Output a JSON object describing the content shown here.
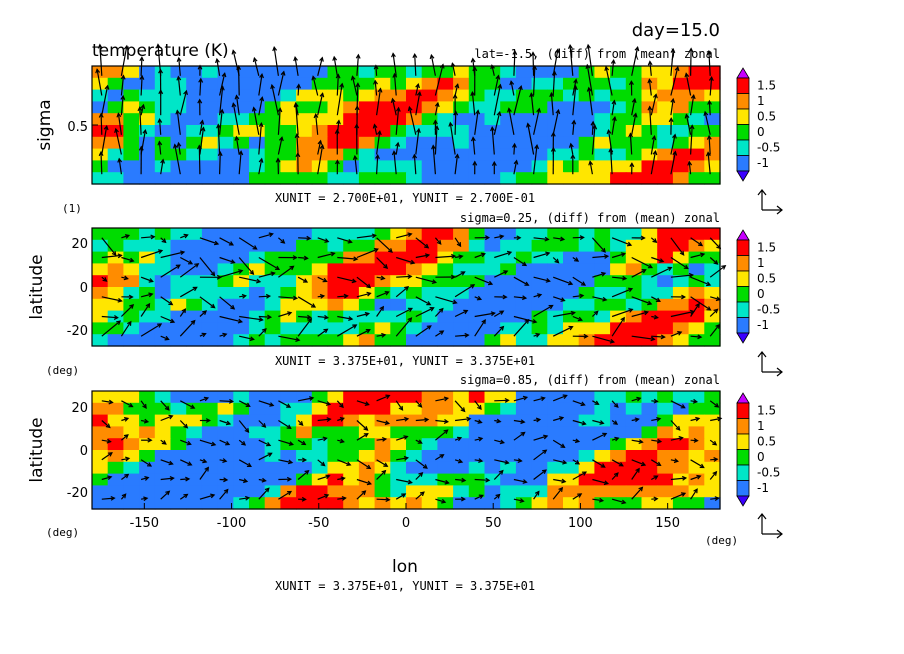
{
  "figure": {
    "day_label": "day=15.0",
    "title": "temperature (K)",
    "xlabel": "lon",
    "x_unit_label": "(deg)"
  },
  "panels": [
    {
      "id": "top",
      "subtitle": "lat=-1.5, (diff) from (mean) zonal",
      "ylabel": "sigma",
      "y_unit_label": "(1)",
      "y_ticks": [
        "0.5"
      ],
      "footer": "XUNIT = 2.700E+01, YUNIT = 2.700E-01"
    },
    {
      "id": "middle",
      "subtitle": "sigma=0.25, (diff) from (mean) zonal",
      "ylabel": "latitude",
      "y_unit_label": "(deg)",
      "y_ticks": [
        "20",
        "0",
        "-20"
      ],
      "footer": "XUNIT = 3.375E+01, YUNIT = 3.375E+01"
    },
    {
      "id": "bottom",
      "subtitle": "sigma=0.85, (diff) from (mean) zonal",
      "ylabel": "latitude",
      "y_unit_label": "(deg)",
      "y_ticks": [
        "20",
        "0",
        "-20"
      ],
      "x_ticks": [
        "-150",
        "-100",
        "-50",
        "0",
        "50",
        "100",
        "150"
      ],
      "footer": "XUNIT = 3.375E+01, YUNIT = 3.375E+01"
    }
  ],
  "colorbar": {
    "labels": [
      "1.5",
      "1",
      "0.5",
      "0",
      "-0.5",
      "-1"
    ],
    "colors": [
      "#c800ff",
      "#ff0000",
      "#ff8c00",
      "#ffe600",
      "#00dc00",
      "#00e6c8",
      "#2a7bff",
      "#3a00ff"
    ]
  },
  "chart_data": [
    {
      "type": "heatmap",
      "title": "temperature (K)",
      "subtitle": "lat=-1.5, (diff) from (mean) zonal",
      "xlabel": "",
      "ylabel": "sigma",
      "xlim": [
        -180,
        180
      ],
      "ylim": [
        1,
        0
      ],
      "levels": [
        -1,
        -0.5,
        0,
        0.5,
        1,
        1.5
      ],
      "grid_cols": 40,
      "grid_rows": 10,
      "vectors": true
    },
    {
      "type": "heatmap",
      "title": "",
      "subtitle": "sigma=0.25, (diff) from (mean) zonal",
      "xlabel": "",
      "ylabel": "latitude",
      "xlim": [
        -180,
        180
      ],
      "ylim": [
        -30,
        30
      ],
      "levels": [
        -1,
        -0.5,
        0,
        0.5,
        1,
        1.5
      ],
      "grid_cols": 40,
      "grid_rows": 10,
      "vectors": true
    },
    {
      "type": "heatmap",
      "title": "",
      "subtitle": "sigma=0.85, (diff) from (mean) zonal",
      "xlabel": "lon",
      "ylabel": "latitude",
      "xlim": [
        -180,
        180
      ],
      "ylim": [
        -30,
        30
      ],
      "levels": [
        -1,
        -0.5,
        0,
        0.5,
        1,
        1.5
      ],
      "grid_cols": 40,
      "grid_rows": 10,
      "vectors": true
    }
  ]
}
